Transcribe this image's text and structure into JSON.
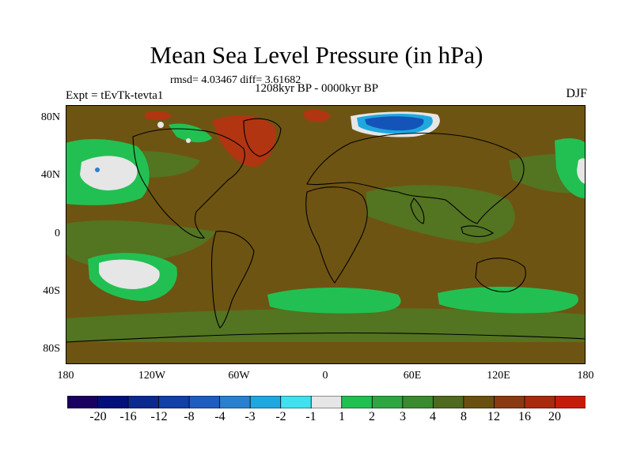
{
  "title": "Mean Sea Level Pressure (in hPa)",
  "stats": "rmsd= 4.03467 diff= 3.61682",
  "period": "1208kyr BP - 0000kyr BP",
  "experiment": "Expt = tEvTk-tevta1",
  "season": "DJF",
  "lat_labels": [
    "80N",
    "40N",
    "0",
    "40S",
    "80S"
  ],
  "lon_labels": [
    "180",
    "120W",
    "60W",
    "0",
    "60E",
    "120E",
    "180"
  ],
  "colorbar": {
    "labels": [
      "-20",
      "-16",
      "-12",
      "-8",
      "-4",
      "-3",
      "-2",
      "-1",
      "1",
      "2",
      "3",
      "4",
      "8",
      "12",
      "16",
      "20"
    ],
    "colors": [
      "#1a0060",
      "#00107a",
      "#0a2a90",
      "#1040a8",
      "#1e5cc0",
      "#2a80d0",
      "#1fa8e0",
      "#40e0f0",
      "#e6e6e6",
      "#20c050",
      "#2ea640",
      "#3a8a30",
      "#4f6a1f",
      "#6a5010",
      "#8a3a10",
      "#a82a0a",
      "#c51c0a"
    ]
  },
  "palette": {
    "background_field": "#6e5412",
    "positive_small": "#2e9a3a",
    "positive_mid": "#22c052",
    "near_zero": "#e6e6e6",
    "negative": "#1454b8",
    "positive_high": "#b83212"
  }
}
